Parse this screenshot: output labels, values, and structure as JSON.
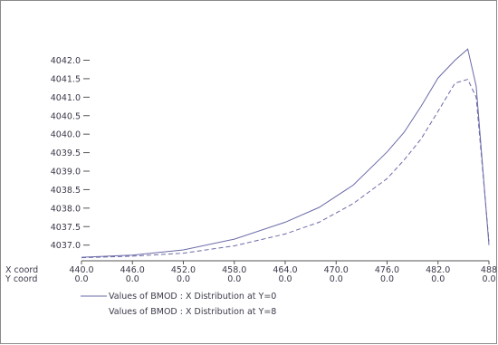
{
  "chart_data": {
    "type": "line",
    "title": "",
    "xlabel": "",
    "ylabel": "",
    "x_row_label": "X coord",
    "y_row_label": "Y coord",
    "xlim": [
      440.0,
      488.0
    ],
    "ylim": [
      4036.6,
      4042.6
    ],
    "x_ticks": [
      "440.0",
      "446.0",
      "452.0",
      "458.0",
      "464.0",
      "470.0",
      "476.0",
      "482.0",
      "488"
    ],
    "y_coord_ticks": [
      "0.0",
      "0.0",
      "0.0",
      "0.0",
      "0.0",
      "0.0",
      "0.0",
      "0.0",
      "0.0"
    ],
    "y_ticks": [
      "4037.0",
      "4037.5",
      "4038.0",
      "4038.5",
      "4039.0",
      "4039.5",
      "4040.0",
      "4040.5",
      "4041.0",
      "4041.5",
      "4042.0"
    ],
    "grid": false,
    "legend_position": "bottom-left",
    "series": [
      {
        "name": "Values of BMOD : X Distribution at Y=0",
        "style": "solid",
        "color": "#6a6aa8",
        "x": [
          440,
          446,
          452,
          458,
          464,
          468,
          472,
          476,
          478,
          480,
          482,
          484,
          485.5,
          486.5,
          488
        ],
        "y": [
          4036.67,
          4036.73,
          4036.87,
          4037.16,
          4037.62,
          4038.02,
          4038.62,
          4039.52,
          4040.05,
          4040.75,
          4041.52,
          4042.0,
          4042.3,
          4041.3,
          4037.0
        ]
      },
      {
        "name": "Values of BMOD : X Distribution at Y=8",
        "style": "dashed",
        "color": "#6a6aa8",
        "x": [
          440,
          446,
          452,
          458,
          464,
          468,
          472,
          476,
          478,
          480,
          482,
          484,
          485.5,
          486.5,
          488
        ],
        "y": [
          4036.66,
          4036.7,
          4036.78,
          4036.98,
          4037.3,
          4037.62,
          4038.12,
          4038.8,
          4039.3,
          4039.87,
          4040.62,
          4041.38,
          4041.48,
          4041.0,
          4037.1
        ]
      }
    ]
  }
}
